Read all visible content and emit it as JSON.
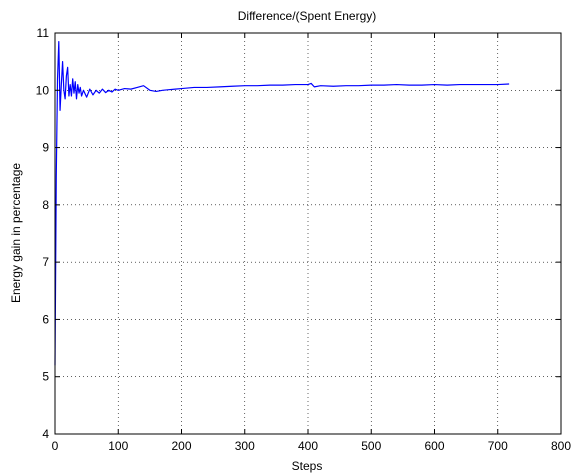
{
  "chart_data": {
    "type": "line",
    "title": "Difference/(Spent Energy)",
    "xlabel": "Steps",
    "ylabel": "Energy gain in percentage",
    "xlim": [
      0,
      800
    ],
    "ylim": [
      4,
      11
    ],
    "xticks": [
      0,
      100,
      200,
      300,
      400,
      500,
      600,
      700,
      800
    ],
    "yticks": [
      4,
      5,
      6,
      7,
      8,
      9,
      10,
      11
    ],
    "grid": true,
    "series": [
      {
        "color": "#0000ff",
        "x": [
          0,
          2,
          4,
          6,
          8,
          10,
          12,
          14,
          16,
          18,
          20,
          22,
          24,
          26,
          28,
          30,
          32,
          34,
          36,
          38,
          40,
          42,
          45,
          50,
          55,
          60,
          65,
          70,
          75,
          80,
          85,
          90,
          95,
          100,
          110,
          120,
          130,
          140,
          150,
          160,
          170,
          180,
          190,
          200,
          220,
          240,
          260,
          280,
          300,
          320,
          340,
          360,
          380,
          400,
          405,
          410,
          420,
          440,
          460,
          480,
          500,
          520,
          540,
          560,
          580,
          600,
          620,
          640,
          660,
          680,
          700,
          718
        ],
        "values": [
          5.2,
          8.5,
          10.2,
          10.85,
          9.65,
          10.1,
          10.5,
          10.0,
          9.85,
          10.25,
          10.4,
          9.9,
          10.1,
          9.9,
          10.2,
          9.95,
          10.15,
          9.85,
          10.1,
          9.95,
          10.05,
          9.9,
          10.0,
          9.88,
          10.02,
          9.92,
          10.0,
          9.95,
          10.02,
          9.96,
          10.0,
          9.97,
          10.02,
          10.0,
          10.03,
          10.02,
          10.05,
          10.08,
          10.0,
          9.98,
          10.0,
          10.01,
          10.02,
          10.03,
          10.05,
          10.05,
          10.06,
          10.07,
          10.08,
          10.08,
          10.09,
          10.09,
          10.1,
          10.1,
          10.12,
          10.06,
          10.08,
          10.07,
          10.08,
          10.08,
          10.09,
          10.09,
          10.1,
          10.09,
          10.09,
          10.1,
          10.09,
          10.1,
          10.1,
          10.1,
          10.1,
          10.11
        ]
      }
    ]
  }
}
